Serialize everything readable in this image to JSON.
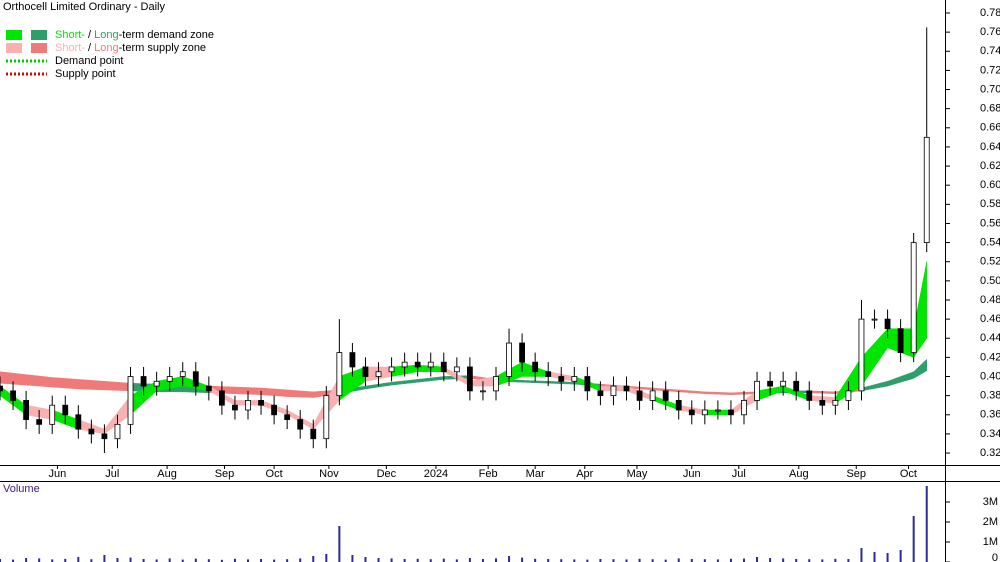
{
  "chart_data": [
    {
      "type": "candlestick",
      "title": "Orthocell Limited Ordinary - Daily",
      "x": [
        0,
        5,
        10,
        15,
        20,
        25,
        30,
        35,
        40,
        45,
        50,
        55,
        60,
        65,
        70,
        75,
        80,
        85,
        90,
        95,
        100,
        105,
        110,
        115,
        120,
        125,
        130,
        135,
        140,
        145,
        150,
        155,
        160,
        165,
        170,
        175,
        180,
        185,
        190,
        195,
        200,
        205,
        210,
        215,
        220,
        225,
        230,
        235,
        240,
        245,
        250,
        255,
        260,
        265,
        270,
        275,
        280,
        285,
        290,
        295,
        300,
        305,
        310,
        315,
        320,
        325,
        330,
        335,
        340,
        345,
        350,
        355
      ],
      "open": [
        0.39,
        0.385,
        0.375,
        0.355,
        0.35,
        0.37,
        0.36,
        0.345,
        0.34,
        0.335,
        0.35,
        0.4,
        0.39,
        0.395,
        0.4,
        0.405,
        0.39,
        0.385,
        0.37,
        0.365,
        0.375,
        0.37,
        0.36,
        0.355,
        0.345,
        0.335,
        0.38,
        0.425,
        0.41,
        0.4,
        0.405,
        0.41,
        0.415,
        0.41,
        0.415,
        0.405,
        0.41,
        0.385,
        0.385,
        0.4,
        0.435,
        0.415,
        0.405,
        0.4,
        0.395,
        0.4,
        0.385,
        0.38,
        0.39,
        0.385,
        0.375,
        0.385,
        0.375,
        0.365,
        0.36,
        0.365,
        0.365,
        0.36,
        0.375,
        0.395,
        0.39,
        0.395,
        0.385,
        0.375,
        0.37,
        0.375,
        0.385,
        0.46,
        0.46,
        0.45,
        0.425,
        0.54
      ],
      "high": [
        0.4,
        0.395,
        0.385,
        0.365,
        0.38,
        0.38,
        0.37,
        0.355,
        0.35,
        0.36,
        0.41,
        0.41,
        0.405,
        0.41,
        0.415,
        0.415,
        0.4,
        0.395,
        0.38,
        0.385,
        0.385,
        0.38,
        0.37,
        0.365,
        0.355,
        0.39,
        0.46,
        0.435,
        0.42,
        0.415,
        0.42,
        0.425,
        0.425,
        0.425,
        0.425,
        0.42,
        0.42,
        0.395,
        0.41,
        0.45,
        0.445,
        0.425,
        0.415,
        0.41,
        0.41,
        0.41,
        0.395,
        0.4,
        0.4,
        0.395,
        0.395,
        0.395,
        0.385,
        0.375,
        0.375,
        0.375,
        0.375,
        0.385,
        0.405,
        0.405,
        0.405,
        0.405,
        0.395,
        0.385,
        0.385,
        0.395,
        0.48,
        0.47,
        0.47,
        0.46,
        0.55,
        0.765
      ],
      "low": [
        0.375,
        0.365,
        0.345,
        0.34,
        0.34,
        0.35,
        0.335,
        0.33,
        0.32,
        0.325,
        0.34,
        0.38,
        0.38,
        0.385,
        0.39,
        0.38,
        0.375,
        0.36,
        0.355,
        0.355,
        0.36,
        0.35,
        0.345,
        0.335,
        0.325,
        0.325,
        0.37,
        0.4,
        0.39,
        0.39,
        0.395,
        0.4,
        0.4,
        0.4,
        0.395,
        0.395,
        0.375,
        0.375,
        0.375,
        0.39,
        0.405,
        0.395,
        0.39,
        0.385,
        0.385,
        0.375,
        0.37,
        0.37,
        0.375,
        0.365,
        0.365,
        0.365,
        0.355,
        0.35,
        0.35,
        0.355,
        0.35,
        0.35,
        0.365,
        0.38,
        0.38,
        0.375,
        0.365,
        0.36,
        0.36,
        0.365,
        0.375,
        0.45,
        0.44,
        0.415,
        0.415,
        0.53
      ],
      "close": [
        0.385,
        0.375,
        0.355,
        0.35,
        0.37,
        0.36,
        0.345,
        0.34,
        0.335,
        0.35,
        0.4,
        0.39,
        0.395,
        0.4,
        0.405,
        0.39,
        0.385,
        0.37,
        0.365,
        0.375,
        0.37,
        0.36,
        0.355,
        0.345,
        0.335,
        0.38,
        0.425,
        0.41,
        0.4,
        0.405,
        0.41,
        0.415,
        0.41,
        0.415,
        0.405,
        0.41,
        0.385,
        0.385,
        0.4,
        0.435,
        0.415,
        0.405,
        0.4,
        0.395,
        0.4,
        0.385,
        0.38,
        0.39,
        0.385,
        0.375,
        0.385,
        0.375,
        0.365,
        0.36,
        0.365,
        0.365,
        0.36,
        0.375,
        0.395,
        0.39,
        0.395,
        0.385,
        0.375,
        0.37,
        0.375,
        0.385,
        0.46,
        0.46,
        0.45,
        0.425,
        0.54,
        0.65
      ],
      "candle_colors": {
        "up": "#ffffff",
        "down": "#000000",
        "edge": "#000000"
      },
      "xlim": [
        0,
        362
      ],
      "ylim": [
        0.3075,
        0.7936
      ],
      "xticks": [
        {
          "value": 22,
          "label": "Jun"
        },
        {
          "value": 43,
          "label": "Jul"
        },
        {
          "value": 64,
          "label": "Aug"
        },
        {
          "value": 86,
          "label": "Sep"
        },
        {
          "value": 105,
          "label": "Oct"
        },
        {
          "value": 126,
          "label": "Nov"
        },
        {
          "value": 148,
          "label": "Dec"
        },
        {
          "value": 167,
          "label": "2024"
        },
        {
          "value": 187,
          "label": "Feb"
        },
        {
          "value": 205,
          "label": "Mar"
        },
        {
          "value": 224,
          "label": "Apr"
        },
        {
          "value": 244,
          "label": "May"
        },
        {
          "value": 265,
          "label": "Jun"
        },
        {
          "value": 283,
          "label": "Jul"
        },
        {
          "value": 306,
          "label": "Aug"
        },
        {
          "value": 328,
          "label": "Sep"
        },
        {
          "value": 348,
          "label": "Oct"
        }
      ],
      "yticks": [
        0.32,
        0.34,
        0.36,
        0.38,
        {
          "value": 0.4,
          "label": "0.40"
        },
        0.42,
        0.44,
        0.46,
        0.48,
        {
          "value": 0.5,
          "label": "0.50"
        },
        0.52,
        0.54,
        0.56,
        0.58,
        {
          "value": 0.6,
          "label": "0.60"
        },
        0.62,
        0.64,
        0.66,
        0.68,
        {
          "value": 0.7,
          "label": "0.70"
        },
        0.72,
        0.74,
        0.76,
        0.78
      ],
      "zones": [
        {
          "x": [
            0,
            10,
            20,
            30,
            40,
            50,
            60,
            70,
            80,
            90,
            100,
            110,
            120,
            130,
            140,
            150,
            160,
            170,
            180,
            190,
            200,
            210,
            220,
            230,
            240,
            250,
            260,
            270,
            280,
            290,
            300,
            310,
            320,
            330,
            340,
            350,
            355
          ],
          "upper": [
            0.405,
            0.402,
            0.399,
            0.397,
            0.395,
            0.393,
            0.392,
            0.391,
            0.39,
            0.389,
            0.388,
            0.386,
            0.384,
            0.386,
            0.39,
            0.394,
            0.397,
            0.4,
            0.401,
            0.397,
            0.396,
            0.395,
            0.394,
            0.392,
            0.39,
            0.388,
            0.386,
            0.384,
            0.383,
            0.384,
            0.385,
            0.385,
            0.384,
            0.388,
            0.395,
            0.405,
            0.418
          ],
          "lower": [
            0.393,
            0.391,
            0.389,
            0.387,
            0.386,
            0.385,
            0.384,
            0.384,
            0.383,
            0.382,
            0.381,
            0.379,
            0.378,
            0.382,
            0.387,
            0.391,
            0.394,
            0.397,
            0.398,
            0.395,
            0.394,
            0.393,
            0.392,
            0.39,
            0.388,
            0.386,
            0.384,
            0.382,
            0.381,
            0.382,
            0.383,
            0.383,
            0.382,
            0.385,
            0.39,
            0.398,
            0.406
          ],
          "demand_color": "#2e9e6b",
          "supply_color": "#f07a7a"
        },
        {
          "x": [
            0,
            10,
            20,
            30,
            40,
            50,
            60,
            70,
            80,
            90,
            100,
            110,
            120,
            130,
            140,
            150,
            160,
            170,
            180,
            190,
            200,
            210,
            220,
            230,
            240,
            250,
            260,
            270,
            280,
            290,
            300,
            310,
            320,
            330,
            340,
            350,
            355
          ],
          "upper": [
            0.39,
            0.37,
            0.365,
            0.355,
            0.345,
            0.38,
            0.395,
            0.4,
            0.39,
            0.375,
            0.375,
            0.365,
            0.35,
            0.4,
            0.41,
            0.41,
            0.412,
            0.41,
            0.395,
            0.4,
            0.415,
            0.405,
            0.4,
            0.39,
            0.39,
            0.38,
            0.37,
            0.365,
            0.365,
            0.385,
            0.39,
            0.38,
            0.378,
            0.42,
            0.45,
            0.45,
            0.52
          ],
          "lower": [
            0.38,
            0.36,
            0.355,
            0.345,
            0.34,
            0.36,
            0.385,
            0.39,
            0.385,
            0.37,
            0.37,
            0.36,
            0.345,
            0.375,
            0.395,
            0.4,
            0.405,
            0.405,
            0.39,
            0.39,
            0.4,
            0.4,
            0.395,
            0.385,
            0.385,
            0.375,
            0.365,
            0.36,
            0.36,
            0.375,
            0.385,
            0.375,
            0.372,
            0.39,
            0.43,
            0.42,
            0.44
          ],
          "demand_color": "#00e600",
          "supply_color": "#f9b0b0"
        }
      ],
      "legend": [
        {
          "short": "Short-",
          "sep": " / ",
          "long": "Long",
          "rest": "-term demand zone",
          "short_color": "#00e600",
          "long_color": "#2e9e6b"
        },
        {
          "short": "Short-",
          "sep": " / ",
          "long": "Long",
          "rest": "-term supply zone",
          "short_color": "#f9b0b0",
          "long_color": "#f07a7a"
        }
      ],
      "points": [
        {
          "label": "Demand point",
          "color": "#00cc00"
        },
        {
          "label": "Supply point",
          "color": "#dd0000"
        }
      ]
    },
    {
      "type": "bar",
      "title": "Volume",
      "color": "#2a2a9a",
      "x": [
        0,
        5,
        10,
        15,
        20,
        25,
        30,
        35,
        40,
        45,
        50,
        55,
        60,
        65,
        70,
        75,
        80,
        85,
        90,
        95,
        100,
        105,
        110,
        115,
        120,
        125,
        130,
        135,
        140,
        145,
        150,
        155,
        160,
        165,
        170,
        175,
        180,
        185,
        190,
        195,
        200,
        205,
        210,
        215,
        220,
        225,
        230,
        235,
        240,
        245,
        250,
        255,
        260,
        265,
        270,
        275,
        280,
        285,
        290,
        295,
        300,
        305,
        310,
        315,
        320,
        325,
        330,
        335,
        340,
        345,
        350,
        355
      ],
      "values": [
        150000,
        120000,
        200000,
        180000,
        130000,
        160000,
        250000,
        140000,
        350000,
        200000,
        220000,
        150000,
        130000,
        180000,
        120000,
        170000,
        140000,
        110000,
        160000,
        130000,
        150000,
        120000,
        140000,
        180000,
        300000,
        400000,
        1800000,
        350000,
        250000,
        200000,
        180000,
        150000,
        160000,
        140000,
        170000,
        130000,
        200000,
        150000,
        180000,
        300000,
        220000,
        160000,
        150000,
        140000,
        130000,
        120000,
        150000,
        140000,
        130000,
        160000,
        140000,
        120000,
        180000,
        150000,
        140000,
        130000,
        160000,
        170000,
        250000,
        200000,
        180000,
        150000,
        140000,
        130000,
        160000,
        150000,
        700000,
        500000,
        450000,
        600000,
        2300000,
        3800000
      ],
      "xlim": [
        0,
        362
      ],
      "ylim": [
        0,
        4000000
      ],
      "yticks": [
        0,
        {
          "value": 1000000,
          "label": "1M"
        },
        {
          "value": 2000000,
          "label": "2M"
        },
        {
          "value": 3000000,
          "label": "3M"
        }
      ]
    }
  ]
}
